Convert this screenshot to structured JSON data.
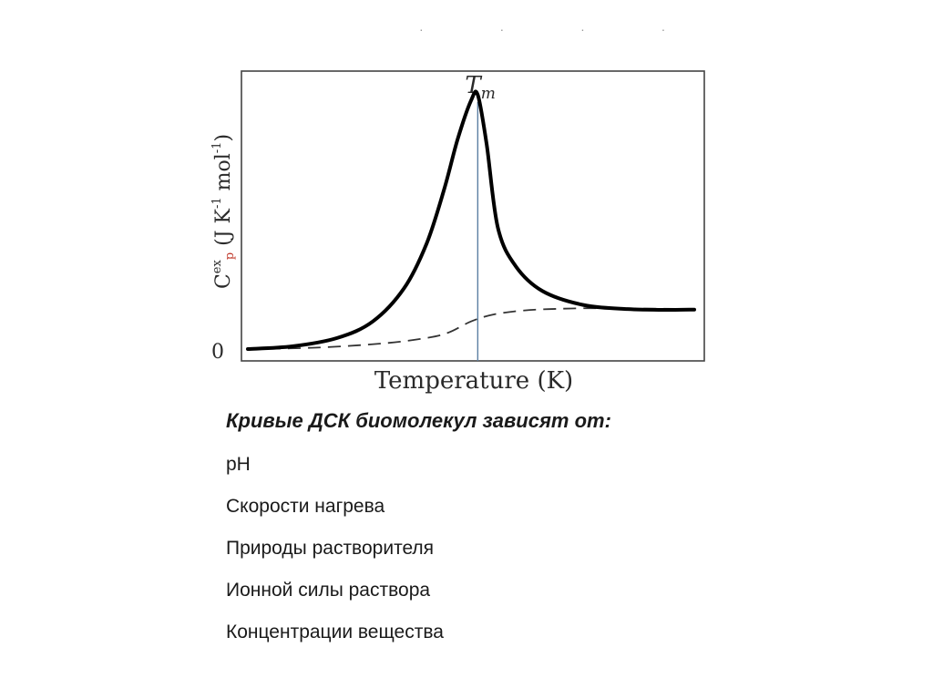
{
  "chart_data": {
    "type": "line",
    "xlabel": "Temperature (K)",
    "ylabel_main": "C",
    "ylabel_sup": "ex",
    "ylabel_sub": "p",
    "ylabel_unit": " (J K",
    "ylabel_unit_sup1": "-1",
    "ylabel_unit_mid": " mol",
    "ylabel_unit_sup2": "-1",
    "ylabel_unit_end": ")",
    "y_tick_zero": "0",
    "marker_label": "T",
    "marker_label_sub": "m",
    "xlim": [
      0,
      100
    ],
    "ylim": [
      0,
      100
    ],
    "series": [
      {
        "style": "solid",
        "x": [
          0,
          10,
          20,
          28,
          35,
          40,
          44,
          47,
          50,
          51.5,
          53.5,
          56,
          60,
          66,
          75,
          85,
          95,
          100
        ],
        "y": [
          0,
          1,
          4,
          10,
          22,
          38,
          58,
          76,
          90,
          92,
          74,
          44,
          30,
          21,
          16,
          14.5,
          14.2,
          14.3
        ]
      },
      {
        "style": "dashed",
        "x": [
          0,
          15,
          30,
          40,
          45,
          50,
          55,
          62,
          70,
          78,
          85,
          100
        ],
        "y": [
          0,
          0.5,
          2,
          4,
          6,
          10,
          12.5,
          14,
          14.6,
          14.8,
          14.7,
          14.5
        ]
      }
    ],
    "tm_x": 51.5,
    "top_artifact": "· ·  · ·"
  },
  "caption": {
    "title": "Кривые ДСК биомолекул зависят от:",
    "items": [
      "pH",
      "Скорости нагрева",
      "Природы растворителя",
      "Ионной силы раствора",
      "Концентрации вещества"
    ]
  }
}
